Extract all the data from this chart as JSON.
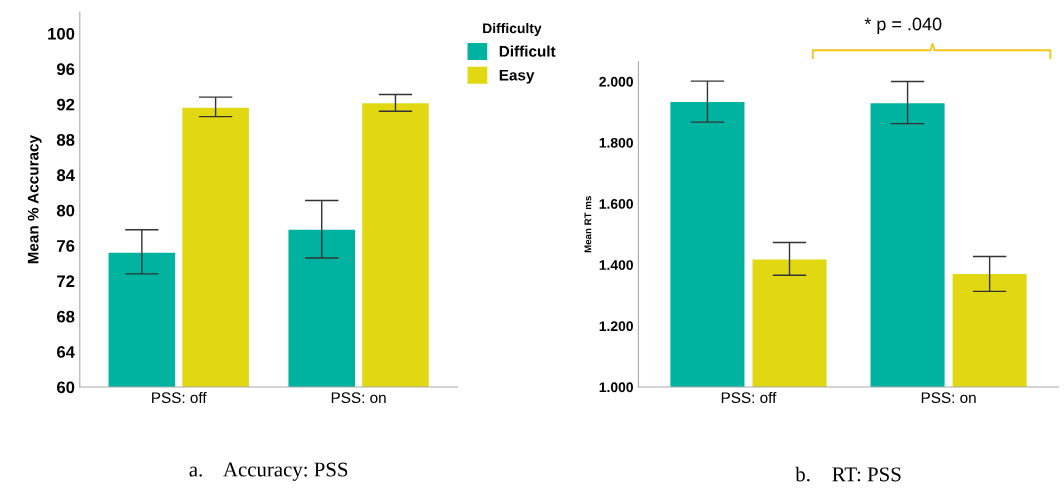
{
  "chart_data": [
    {
      "type": "bar",
      "ylabel": "Mean % Accuracy",
      "categories": [
        "PSS: off",
        "PSS: on"
      ],
      "legend_title": "Difficulty",
      "legend": "right",
      "grid": false,
      "series": [
        {
          "name": "Difficult",
          "color": "#00b2a0",
          "values": [
            75.2,
            77.8
          ],
          "errors": [
            [
              72.8,
              77.8
            ],
            [
              74.6,
              81.1
            ]
          ]
        },
        {
          "name": "Easy",
          "color": "#e1d812",
          "values": [
            91.6,
            92.1
          ],
          "errors": [
            [
              90.6,
              92.8
            ],
            [
              91.2,
              93.1
            ]
          ]
        }
      ],
      "ylim": [
        60,
        102.4
      ],
      "yticks": [
        60,
        64,
        68,
        72,
        76,
        80,
        84,
        88,
        92,
        96,
        100
      ],
      "annotations": [
        "a.    Accuracy: PSS"
      ]
    },
    {
      "type": "bar",
      "ylabel": "Mean RT ms",
      "categories": [
        "PSS: off",
        "PSS: on"
      ],
      "grid": false,
      "series": [
        {
          "color": "#00b2a0",
          "values": [
            1933,
            1929
          ],
          "errors": [
            [
              1867,
              2001
            ],
            [
              1862,
              2000
            ]
          ]
        },
        {
          "color": "#e1d812",
          "values": [
            1417,
            1370
          ],
          "errors": [
            [
              1366,
              1473
            ],
            [
              1313,
              1427
            ]
          ]
        }
      ],
      "ylim": [
        1000,
        2065
      ],
      "yticks": [
        {
          "value": 1000,
          "label": "1.000"
        },
        {
          "value": 1200,
          "label": "1.200"
        },
        {
          "value": 1400,
          "label": "1.400"
        },
        {
          "value": 1600,
          "label": "1.600"
        },
        {
          "value": 1800,
          "label": "1.800"
        },
        {
          "value": 2000,
          "label": "2.000"
        }
      ],
      "annotations": [
        "* p = .040",
        "b.    RT: PSS"
      ]
    }
  ]
}
